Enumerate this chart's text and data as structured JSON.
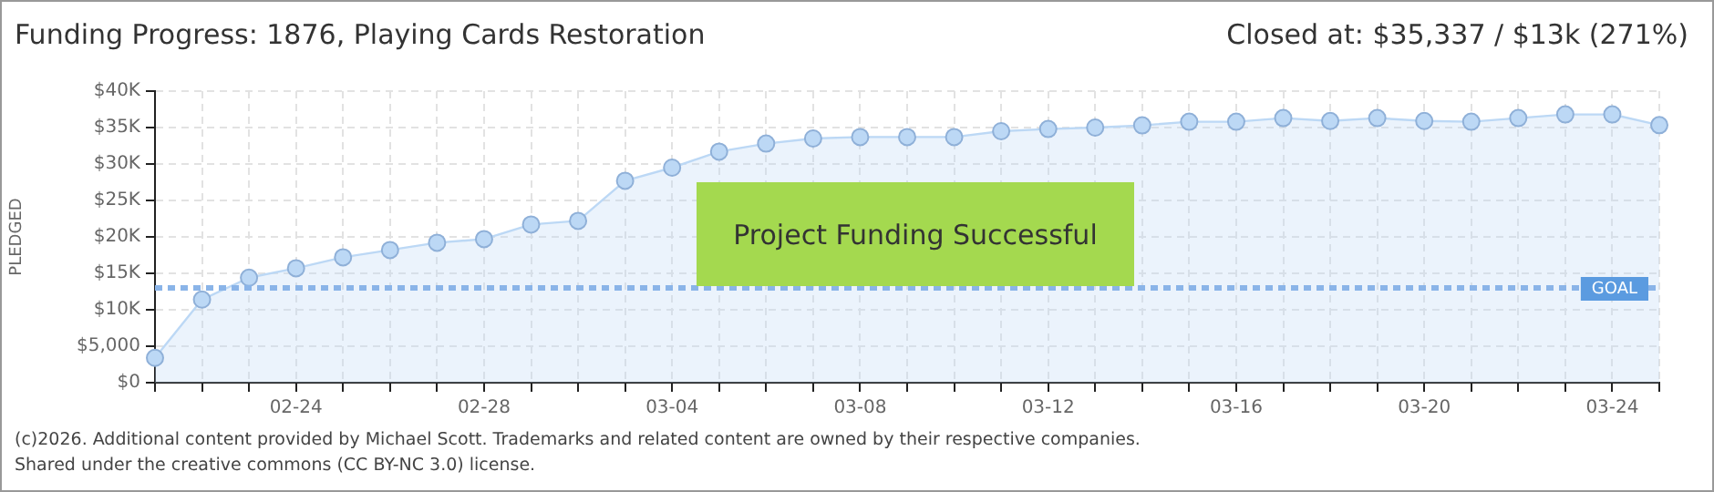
{
  "chart_data": {
    "type": "area",
    "title": "Funding Progress: 1876, Playing Cards Restoration",
    "subtitle": "Closed at: $35,337 / $13k (271%)",
    "ylabel": "PLEDGED",
    "categories": [
      null,
      null,
      null,
      "02-24",
      null,
      null,
      null,
      "02-28",
      null,
      null,
      null,
      "03-04",
      null,
      null,
      null,
      "03-08",
      null,
      null,
      null,
      "03-12",
      null,
      null,
      null,
      "03-16",
      null,
      null,
      null,
      "03-20",
      null,
      null,
      null,
      "03-24",
      null
    ],
    "series": [
      {
        "color": "#bcd8f5",
        "values": [
          3400,
          11400,
          14400,
          15700,
          17200,
          18200,
          19200,
          19700,
          21700,
          22200,
          27700,
          29500,
          31700,
          32800,
          33500,
          33700,
          33700,
          33700,
          34500,
          34800,
          35000,
          35300,
          35800,
          35800,
          36300,
          35900,
          36300,
          35900,
          35800,
          36300,
          36800,
          36800,
          35337
        ]
      }
    ],
    "ylim": [
      0,
      40000
    ],
    "yticks": [
      {
        "value": 0,
        "label": "$0"
      },
      {
        "value": 5000,
        "label": "$5,000"
      },
      {
        "value": 10000,
        "label": "$10K"
      },
      {
        "value": 15000,
        "label": "$15K"
      },
      {
        "value": 20000,
        "label": "$20K"
      },
      {
        "value": 25000,
        "label": "$25K"
      },
      {
        "value": 30000,
        "label": "$30K"
      },
      {
        "value": 35000,
        "label": "$35K"
      },
      {
        "value": 40000,
        "label": "$40K"
      }
    ],
    "ref_lines": [
      {
        "axis": "y",
        "value": 13000,
        "label": "GOAL",
        "color": "#8ab4e8",
        "line_style": "dashed"
      }
    ],
    "annotations": [
      "Project Funding Successful",
      "(c)2026. Additional content provided by Michael Scott. Trademarks and related content are owned by their respective companies.",
      "Shared under the creative commons (CC BY-NC 3.0) license."
    ],
    "grid": true,
    "legend": false,
    "marker": "circle",
    "line_style": "solid"
  }
}
